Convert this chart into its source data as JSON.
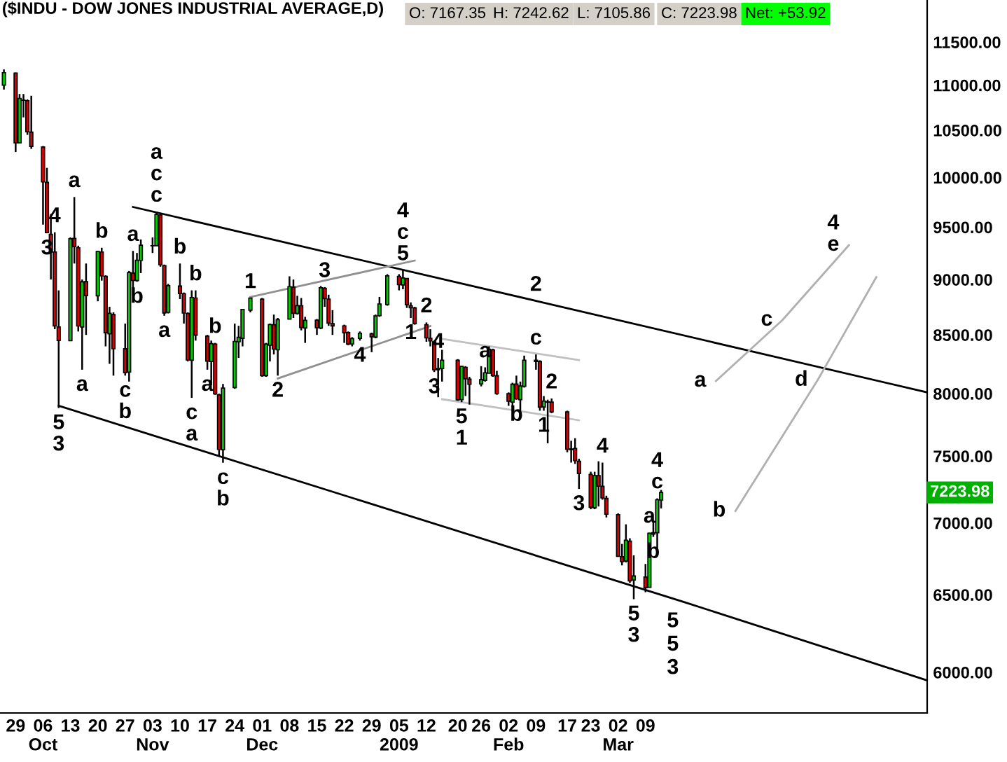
{
  "chart_data": {
    "type": "candlestick",
    "title": "($INDU - DOW JONES INDUSTRIAL AVERAGE,D)",
    "annotations": [
      "O: 7167.35",
      "H: 7242.62",
      "L: 7105.86",
      "C: 7223.98",
      "Net: +53.92",
      "7223.98",
      {
        "text": "4",
        "x": "2008-10-09",
        "y": 9450
      },
      {
        "text": "3",
        "x": "2008-10-07",
        "y": 9440
      },
      {
        "text": "a",
        "x": "2008-10-14",
        "y": 9800
      },
      {
        "text": "5",
        "x": "2008-10-10",
        "y": 7882
      },
      {
        "text": "3",
        "x": "2008-10-10",
        "y": 7882
      },
      {
        "text": "a",
        "x": "2008-10-16",
        "y": 8200
      },
      {
        "text": "b",
        "x": "2008-10-21",
        "y": 9300
      },
      {
        "text": "c",
        "x": "2008-10-27",
        "y": 8150
      },
      {
        "text": "b",
        "x": "2008-10-27",
        "y": 8150
      },
      {
        "text": "a",
        "x": "2008-10-29",
        "y": 9270
      },
      {
        "text": "b",
        "x": "2008-10-30",
        "y": 8980
      },
      {
        "text": "c",
        "x": "2008-11-04",
        "y": 9654
      },
      {
        "text": "c",
        "x": "2008-11-04",
        "y": 9654
      },
      {
        "text": "a",
        "x": "2008-11-04",
        "y": 9654
      },
      {
        "text": "a",
        "x": "2008-11-06",
        "y": 8670
      },
      {
        "text": "b",
        "x": "2008-11-10",
        "y": 9150
      },
      {
        "text": "c",
        "x": "2008-11-13",
        "y": 7965
      },
      {
        "text": "a",
        "x": "2008-11-13",
        "y": 7965
      },
      {
        "text": "b",
        "x": "2008-11-14",
        "y": 8900
      },
      {
        "text": "a",
        "x": "2008-11-17",
        "y": 8200
      },
      {
        "text": "b",
        "x": "2008-11-19",
        "y": 8430
      },
      {
        "text": "c",
        "x": "2008-11-21",
        "y": 7449
      },
      {
        "text": "b",
        "x": "2008-11-21",
        "y": 7449
      },
      {
        "text": "1",
        "x": "2008-11-28",
        "y": 8830
      },
      {
        "text": "2",
        "x": "2008-12-05",
        "y": 8150
      },
      {
        "text": "3",
        "x": "2008-12-17",
        "y": 8930
      },
      {
        "text": "4",
        "x": "2008-12-26",
        "y": 8450
      },
      {
        "text": "5",
        "x": "2009-01-06",
        "y": 9088
      },
      {
        "text": "c",
        "x": "2009-01-06",
        "y": 9088
      },
      {
        "text": "4",
        "x": "2009-01-06",
        "y": 9088
      },
      {
        "text": "1",
        "x": "2009-01-08",
        "y": 8650
      },
      {
        "text": "2",
        "x": "2009-01-12",
        "y": 8610
      },
      {
        "text": "4",
        "x": "2009-01-15",
        "y": 8300
      },
      {
        "text": "3",
        "x": "2009-01-14",
        "y": 8180
      },
      {
        "text": "5",
        "x": "2009-01-21",
        "y": 7930
      },
      {
        "text": "1",
        "x": "2009-01-21",
        "y": 7930
      },
      {
        "text": "a",
        "x": "2009-01-27",
        "y": 8220
      },
      {
        "text": "b",
        "x": "2009-02-04",
        "y": 7950
      },
      {
        "text": "c",
        "x": "2009-02-09",
        "y": 8330
      },
      {
        "text": "2",
        "x": "2009-02-09",
        "y": 8804
      },
      {
        "text": "2",
        "x": "2009-02-13",
        "y": 7960
      },
      {
        "text": "1",
        "x": "2009-02-11",
        "y": 7860
      },
      {
        "text": "4",
        "x": "2009-02-26",
        "y": 7450
      },
      {
        "text": "3",
        "x": "2009-02-20",
        "y": 7250
      },
      {
        "text": "5",
        "x": "2009-03-06",
        "y": 6470
      },
      {
        "text": "3",
        "x": "2009-03-06",
        "y": 6470
      },
      {
        "text": "a",
        "x": "2009-03-10",
        "y": 6930
      },
      {
        "text": "b",
        "x": "2009-03-11",
        "y": 6900
      },
      {
        "text": "c",
        "x": "2009-03-12",
        "y": 7180
      },
      {
        "text": "4",
        "x": "2009-03-12",
        "y": 7180
      },
      {
        "text": "a",
        "x": "2009-03-27",
        "y": 8104
      },
      {
        "text": "c",
        "x": "2009-04-13",
        "y": 8631
      },
      {
        "text": "e",
        "x": "2009-04-30",
        "y": 9325
      },
      {
        "text": "4",
        "x": "2009-04-30",
        "y": 9325
      },
      {
        "text": "b",
        "x": "2009-04-01",
        "y": 7087
      },
      {
        "text": "d",
        "x": "2009-04-22",
        "y": 8112
      },
      {
        "text": "5",
        "x": "2009-03-19",
        "y": 6450
      },
      {
        "text": "5",
        "x": "2009-03-19",
        "y": 6450
      },
      {
        "text": "3",
        "x": "2009-03-19",
        "y": 6450
      }
    ],
    "log": true,
    "ylim": [
      5753,
      12011
    ],
    "yticks": [
      {
        "value": 6000,
        "label": "6000.00"
      },
      {
        "value": 6500,
        "label": "6500.00"
      },
      {
        "value": 7000,
        "label": "7000.00"
      },
      {
        "value": 7500,
        "label": "7500.00"
      },
      {
        "value": 8000,
        "label": "8000.00"
      },
      {
        "value": 8500,
        "label": "8500.00"
      },
      {
        "value": 9000,
        "label": "9000.00"
      },
      {
        "value": 9500,
        "label": "9500.00"
      },
      {
        "value": 10000,
        "label": "10000.00"
      },
      {
        "value": 10500,
        "label": "10500.00"
      },
      {
        "value": 11000,
        "label": "11000.00"
      },
      {
        "value": 11500,
        "label": "11500.00"
      }
    ],
    "xlim": [
      "2008-09-25",
      "2009-05-20"
    ],
    "xticks": [
      {
        "value": "2008-09-29",
        "label": "29"
      },
      {
        "value": "2008-10-06",
        "label": "06\nOct"
      },
      {
        "value": "2008-10-13",
        "label": "13"
      },
      {
        "value": "2008-10-20",
        "label": "20"
      },
      {
        "value": "2008-10-27",
        "label": "27"
      },
      {
        "value": "2008-11-03",
        "label": "03\nNov"
      },
      {
        "value": "2008-11-10",
        "label": "10"
      },
      {
        "value": "2008-11-17",
        "label": "17"
      },
      {
        "value": "2008-11-24",
        "label": "24"
      },
      {
        "value": "2008-12-01",
        "label": "01\nDec"
      },
      {
        "value": "2008-12-08",
        "label": "08"
      },
      {
        "value": "2008-12-15",
        "label": "15"
      },
      {
        "value": "2008-12-22",
        "label": "22"
      },
      {
        "value": "2008-12-29",
        "label": "29"
      },
      {
        "value": "2009-01-05",
        "label": "05\n2009"
      },
      {
        "value": "2009-01-12",
        "label": "12"
      },
      {
        "value": "2009-01-20",
        "label": "20"
      },
      {
        "value": "2009-01-26",
        "label": "26"
      },
      {
        "value": "2009-02-02",
        "label": "02\nFeb"
      },
      {
        "value": "2009-02-09",
        "label": "09"
      },
      {
        "value": "2009-02-17",
        "label": "17"
      },
      {
        "value": "2009-02-23",
        "label": "23"
      },
      {
        "value": "2009-03-02",
        "label": "02\nMar"
      },
      {
        "value": "2009-03-09",
        "label": "09"
      }
    ],
    "series": [
      {
        "type": "line",
        "color": "#000000",
        "line_style": "solid",
        "x": [
          "2008-10-29",
          "2009-02-09",
          "2009-05-20"
        ],
        "values": [
          9700,
          8804,
          8010
        ]
      },
      {
        "type": "line",
        "color": "#000000",
        "line_style": "solid",
        "x": [
          "2008-10-10",
          "2009-03-19",
          "2009-05-20"
        ],
        "values": [
          7900,
          6450,
          5950
        ]
      },
      {
        "type": "line",
        "color": "#909090",
        "line_style": "solid",
        "x": [
          "2008-11-28",
          "2009-01-09"
        ],
        "values": [
          8839,
          9178
        ]
      },
      {
        "type": "line",
        "color": "#909090",
        "line_style": "solid",
        "x": [
          "2008-12-05",
          "2009-01-13"
        ],
        "values": [
          8126,
          8578
        ]
      },
      {
        "type": "line",
        "color": "#c0c0c0",
        "line_style": "solid",
        "x": [
          "2009-01-16",
          "2009-02-20"
        ],
        "values": [
          8465,
          8282
        ]
      },
      {
        "type": "line",
        "color": "#c0c0c0",
        "line_style": "solid",
        "x": [
          "2009-01-16",
          "2009-02-20"
        ],
        "values": [
          7954,
          7783
        ]
      },
      {
        "type": "line",
        "color": "#b0b0b0",
        "line_style": "solid",
        "x": [
          "2009-03-27",
          "2009-04-13",
          "2009-04-30"
        ],
        "values": [
          8104,
          8631,
          9325
        ]
      },
      {
        "type": "line",
        "color": "#b0b0b0",
        "line_style": "solid",
        "x": [
          "2009-04-01",
          "2009-04-22",
          "2009-05-07"
        ],
        "values": [
          7087,
          8112,
          9022
        ]
      }
    ],
    "x": [
      "2008-09-26",
      "2008-09-29",
      "2008-09-30",
      "2008-10-01",
      "2008-10-02",
      "2008-10-03",
      "2008-10-06",
      "2008-10-07",
      "2008-10-08",
      "2008-10-09",
      "2008-10-10",
      "2008-10-13",
      "2008-10-14",
      "2008-10-15",
      "2008-10-16",
      "2008-10-17",
      "2008-10-20",
      "2008-10-21",
      "2008-10-22",
      "2008-10-23",
      "2008-10-24",
      "2008-10-27",
      "2008-10-28",
      "2008-10-29",
      "2008-10-30",
      "2008-10-31",
      "2008-11-03",
      "2008-11-04",
      "2008-11-05",
      "2008-11-06",
      "2008-11-07",
      "2008-11-10",
      "2008-11-11",
      "2008-11-12",
      "2008-11-13",
      "2008-11-14",
      "2008-11-17",
      "2008-11-18",
      "2008-11-19",
      "2008-11-20",
      "2008-11-21",
      "2008-11-24",
      "2008-11-25",
      "2008-11-26",
      "2008-11-28",
      "2008-12-01",
      "2008-12-02",
      "2008-12-03",
      "2008-12-04",
      "2008-12-05",
      "2008-12-08",
      "2008-12-09",
      "2008-12-10",
      "2008-12-11",
      "2008-12-12",
      "2008-12-15",
      "2008-12-16",
      "2008-12-17",
      "2008-12-18",
      "2008-12-19",
      "2008-12-22",
      "2008-12-23",
      "2008-12-24",
      "2008-12-26",
      "2008-12-29",
      "2008-12-30",
      "2008-12-31",
      "2009-01-02",
      "2009-01-05",
      "2009-01-06",
      "2009-01-07",
      "2009-01-08",
      "2009-01-09",
      "2009-01-12",
      "2009-01-13",
      "2009-01-14",
      "2009-01-15",
      "2009-01-16",
      "2009-01-20",
      "2009-01-21",
      "2009-01-22",
      "2009-01-23",
      "2009-01-26",
      "2009-01-27",
      "2009-01-28",
      "2009-01-29",
      "2009-01-30",
      "2009-02-02",
      "2009-02-03",
      "2009-02-04",
      "2009-02-05",
      "2009-02-06",
      "2009-02-09",
      "2009-02-10",
      "2009-02-11",
      "2009-02-12",
      "2009-02-13",
      "2009-02-17",
      "2009-02-18",
      "2009-02-19",
      "2009-02-20",
      "2009-02-23",
      "2009-02-24",
      "2009-02-25",
      "2009-02-26",
      "2009-02-27",
      "2009-03-02",
      "2009-03-03",
      "2009-03-04",
      "2009-03-05",
      "2009-03-06",
      "2009-03-09",
      "2009-03-10",
      "2009-03-11",
      "2009-03-12",
      "2009-03-13"
    ],
    "ohlc": [
      [
        11000,
        11180,
        10950,
        11143
      ],
      [
        11139,
        11143,
        10266,
        10365
      ],
      [
        10365,
        10900,
        10365,
        10851
      ],
      [
        10830,
        10900,
        10640,
        10831
      ],
      [
        10825,
        10840,
        10450,
        10483
      ],
      [
        10480,
        10880,
        10300,
        10325
      ],
      [
        10320,
        10330,
        9525,
        9955
      ],
      [
        9950,
        10100,
        9440,
        9447
      ],
      [
        9430,
        9630,
        9000,
        9258
      ],
      [
        9260,
        9450,
        8550,
        8579
      ],
      [
        8570,
        8900,
        7882,
        8451
      ],
      [
        8450,
        9400,
        8450,
        9387
      ],
      [
        9390,
        9800,
        9150,
        9310
      ],
      [
        9300,
        9320,
        8530,
        8578
      ],
      [
        8570,
        9000,
        8200,
        8979
      ],
      [
        8980,
        9150,
        8500,
        8852
      ],
      [
        8850,
        9270,
        8800,
        9265
      ],
      [
        9260,
        9300,
        8990,
        9034
      ],
      [
        9030,
        9040,
        8400,
        8519
      ],
      [
        8510,
        8750,
        8250,
        8691
      ],
      [
        8680,
        8700,
        8150,
        8379
      ],
      [
        8380,
        8600,
        8150,
        8175
      ],
      [
        8180,
        9080,
        8100,
        9065
      ],
      [
        9060,
        9270,
        8850,
        8991
      ],
      [
        8990,
        9250,
        8980,
        9181
      ],
      [
        9180,
        9380,
        9060,
        9325
      ],
      [
        9320,
        9400,
        9250,
        9319
      ],
      [
        9320,
        9654,
        9320,
        9625
      ],
      [
        9620,
        9630,
        9120,
        9139
      ],
      [
        9130,
        9140,
        8670,
        8695
      ],
      [
        8700,
        8960,
        8690,
        8943
      ],
      [
        8940,
        9150,
        8820,
        8870
      ],
      [
        8870,
        8880,
        8600,
        8694
      ],
      [
        8690,
        8700,
        8270,
        8283
      ],
      [
        8280,
        8900,
        7965,
        8835
      ],
      [
        8830,
        8900,
        8450,
        8497
      ],
      [
        8490,
        8500,
        8200,
        8273
      ],
      [
        8270,
        8450,
        8070,
        8424
      ],
      [
        8420,
        8430,
        7990,
        7997
      ],
      [
        7990,
        8000,
        7507,
        7552
      ],
      [
        7550,
        8080,
        7449,
        8046
      ],
      [
        8050,
        8600,
        8040,
        8443
      ],
      [
        8440,
        8580,
        8300,
        8479
      ],
      [
        8470,
        8730,
        8400,
        8727
      ],
      [
        8720,
        8830,
        8700,
        8829
      ],
      [
        8820,
        8830,
        8140,
        8149
      ],
      [
        8150,
        8430,
        8140,
        8419
      ],
      [
        8410,
        8600,
        8270,
        8591
      ],
      [
        8590,
        8680,
        8330,
        8376
      ],
      [
        8370,
        8650,
        8150,
        8635
      ],
      [
        8640,
        9030,
        8640,
        8934
      ],
      [
        8930,
        9000,
        8650,
        8691
      ],
      [
        8690,
        8850,
        8680,
        8761
      ],
      [
        8760,
        8830,
        8540,
        8565
      ],
      [
        8560,
        8660,
        8430,
        8629
      ],
      [
        8630,
        8640,
        8500,
        8564
      ],
      [
        8560,
        8940,
        8550,
        8924
      ],
      [
        8920,
        8930,
        8750,
        8824
      ],
      [
        8820,
        8860,
        8580,
        8604
      ],
      [
        8600,
        8720,
        8500,
        8579
      ],
      [
        8580,
        8590,
        8430,
        8519
      ],
      [
        8520,
        8530,
        8410,
        8419
      ],
      [
        8420,
        8480,
        8400,
        8468
      ],
      [
        8470,
        8530,
        8450,
        8515
      ],
      [
        8510,
        8520,
        8350,
        8483
      ],
      [
        8480,
        8680,
        8470,
        8668
      ],
      [
        8670,
        8840,
        8660,
        8776
      ],
      [
        8770,
        9050,
        8760,
        9034
      ],
      [
        9030,
        9050,
        8900,
        8952
      ],
      [
        8950,
        9088,
        8910,
        9015
      ],
      [
        9010,
        9010,
        8740,
        8769
      ],
      [
        8760,
        8790,
        8650,
        8742
      ],
      [
        8740,
        8750,
        8590,
        8599
      ],
      [
        8590,
        8610,
        8440,
        8474
      ],
      [
        8470,
        8550,
        8400,
        8448
      ],
      [
        8440,
        8450,
        8180,
        8200
      ],
      [
        8200,
        8300,
        7970,
        8212
      ],
      [
        8210,
        8370,
        8100,
        8281
      ],
      [
        8280,
        8290,
        7940,
        7949
      ],
      [
        7950,
        8230,
        7930,
        8228
      ],
      [
        8220,
        8230,
        7980,
        8123
      ],
      [
        8120,
        8140,
        7910,
        8077
      ],
      [
        8080,
        8230,
        8060,
        8116
      ],
      [
        8110,
        8220,
        8100,
        8174
      ],
      [
        8170,
        8400,
        8170,
        8375
      ],
      [
        8370,
        8380,
        8140,
        8149
      ],
      [
        8150,
        8190,
        7990,
        8001
      ],
      [
        8000,
        8010,
        7900,
        7937
      ],
      [
        7930,
        8090,
        7890,
        8078
      ],
      [
        8080,
        8150,
        7950,
        7957
      ],
      [
        7950,
        8100,
        7850,
        8063
      ],
      [
        8060,
        8320,
        8050,
        8280
      ],
      [
        8280,
        8330,
        8200,
        8270
      ],
      [
        8270,
        8280,
        7860,
        7889
      ],
      [
        7890,
        7980,
        7860,
        7939
      ],
      [
        7930,
        7950,
        7600,
        7933
      ],
      [
        7930,
        7960,
        7840,
        7850
      ],
      [
        7850,
        7860,
        7530,
        7553
      ],
      [
        7550,
        7620,
        7450,
        7556
      ],
      [
        7560,
        7640,
        7440,
        7466
      ],
      [
        7460,
        7480,
        7250,
        7366
      ],
      [
        7360,
        7380,
        7100,
        7115
      ],
      [
        7110,
        7380,
        7100,
        7351
      ],
      [
        7350,
        7460,
        7120,
        7271
      ],
      [
        7270,
        7450,
        7170,
        7183
      ],
      [
        7180,
        7200,
        7040,
        7063
      ],
      [
        7060,
        7070,
        6760,
        6763
      ],
      [
        6760,
        6850,
        6700,
        6726
      ],
      [
        6730,
        6990,
        6720,
        6876
      ],
      [
        6870,
        6890,
        6580,
        6594
      ],
      [
        6600,
        6770,
        6470,
        6627
      ],
      [
        6620,
        6710,
        6517,
        6547
      ],
      [
        6550,
        6930,
        6550,
        6926
      ],
      [
        6920,
        7010,
        6900,
        6930
      ],
      [
        6930,
        7180,
        6800,
        7170
      ],
      [
        7167.35,
        7242.62,
        7105.86,
        7223.98
      ]
    ]
  }
}
